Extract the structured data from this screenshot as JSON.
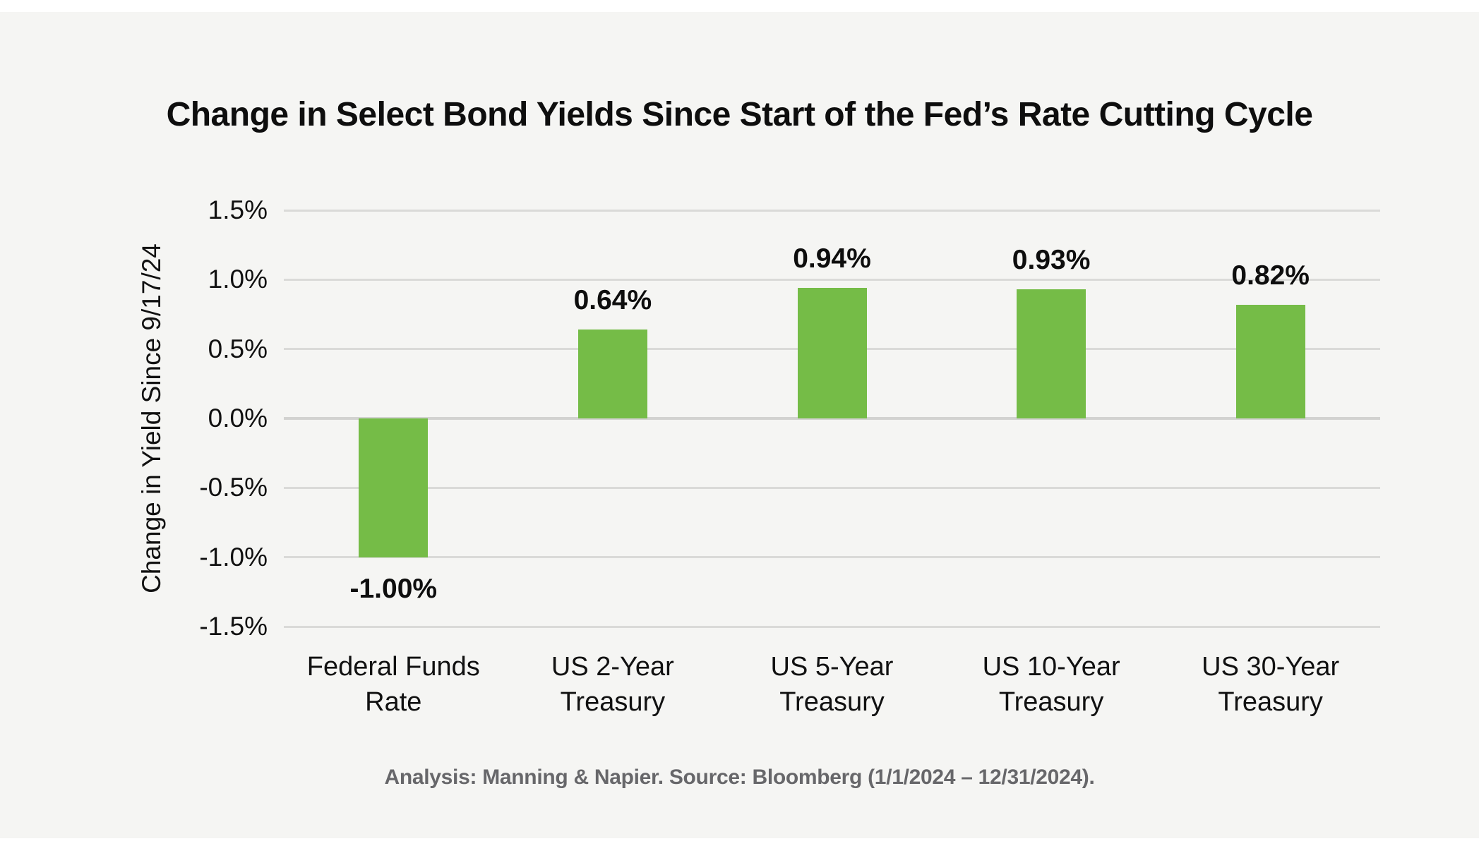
{
  "chart": {
    "title": "Change in Select Bond Yields Since Start of the Fed’s Rate Cutting Cycle",
    "source_note": "Analysis: Manning & Napier. Source: Bloomberg (1/1/2024 – 12/31/2024).",
    "colors": {
      "bar_green": "#75bc47",
      "panel_background": "#f5f5f3",
      "gridline": "#dadad8",
      "footer_text": "#67676a"
    }
  },
  "chart_data": {
    "type": "bar",
    "title": "Change in Select Bond Yields Since Start of the Fed’s Rate Cutting Cycle",
    "ylabel": "Change in Yield Since 9/17/24",
    "xlabel": "",
    "categories": [
      "Federal Funds Rate",
      "US 2-Year Treasury",
      "US 5-Year Treasury",
      "US 10-Year Treasury",
      "US 30-Year Treasury"
    ],
    "category_lines": [
      [
        "Federal Funds",
        "Rate"
      ],
      [
        "US 2-Year",
        "Treasury"
      ],
      [
        "US 5-Year",
        "Treasury"
      ],
      [
        "US 10-Year",
        "Treasury"
      ],
      [
        "US 30-Year",
        "Treasury"
      ]
    ],
    "values": [
      -1.0,
      0.64,
      0.94,
      0.93,
      0.82
    ],
    "value_labels": [
      "-1.00%",
      "0.64%",
      "0.94%",
      "0.93%",
      "0.82%"
    ],
    "ylim": [
      -1.5,
      1.5
    ],
    "yticks": [
      1.5,
      1.0,
      0.5,
      0.0,
      -0.5,
      -1.0,
      -1.5
    ],
    "ytick_labels": [
      "1.5%",
      "1.0%",
      "0.5%",
      "0.0%",
      "-0.5%",
      "-1.0%",
      "-1.5%"
    ],
    "grid": true,
    "legend": false,
    "bar_color": "#75bc47"
  }
}
